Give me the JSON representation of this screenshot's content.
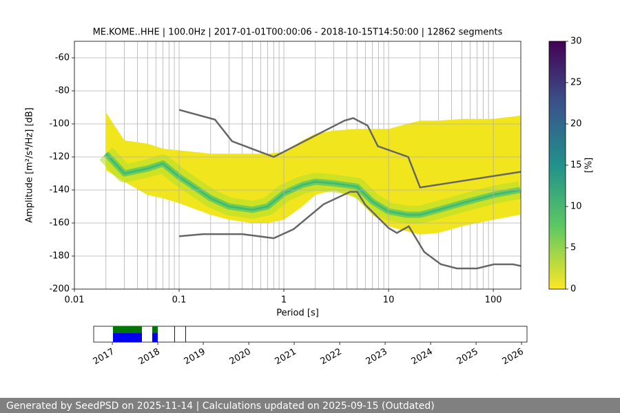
{
  "chart_data": {
    "type": "ppsd",
    "title": "ME.KOME..HHE | 100.0Hz | 2017-01-01T00:00:06 - 2018-10-15T14:50:00 | 12862 segments",
    "x_label": "Period [s]",
    "y_label": "Amplitude [m²/s⁴/Hz] [dB]",
    "log_x": true,
    "xlim": [
      0.01,
      183
    ],
    "ylim": [
      -200,
      -50
    ],
    "xticks": [
      0.01,
      0.1,
      1,
      10,
      100
    ],
    "yticks": [
      -200,
      -180,
      -160,
      -140,
      -120,
      -100,
      -80,
      -60
    ],
    "grid": true,
    "band": {
      "x": [
        0.02,
        0.03,
        0.05,
        0.07,
        0.1,
        0.2,
        0.3,
        0.5,
        0.7,
        1,
        1.5,
        2,
        3,
        5,
        7,
        10,
        15,
        20,
        30,
        50,
        100,
        180
      ],
      "high": [
        -93,
        -110,
        -112,
        -115,
        -116,
        -118,
        -118,
        -118,
        -118,
        -117,
        -110,
        -106,
        -104,
        -103,
        -103,
        -103,
        -100,
        -98,
        -98,
        -97,
        -97,
        -95
      ],
      "low": [
        -128,
        -135,
        -143,
        -145,
        -148,
        -155,
        -158,
        -160,
        -160,
        -158,
        -150,
        -143,
        -140,
        -145,
        -155,
        -162,
        -165,
        -167,
        -166,
        -162,
        -158,
        -155
      ],
      "mode": [
        -118,
        -130,
        -127,
        -124,
        -132,
        -145,
        -150,
        -152,
        -150,
        -142,
        -137,
        -135,
        -136,
        -138,
        -147,
        -153,
        -155,
        -155,
        -152,
        -148,
        -143,
        -140
      ],
      "color": "#f1e51d",
      "mode_color": "#5ec962"
    },
    "series": [
      {
        "color": "#666666",
        "x": [
          0.1,
          0.22,
          0.32,
          0.8,
          3.8,
          4.6,
          6.3,
          7.9,
          15.4,
          20,
          183
        ],
        "values": [
          -91.5,
          -97.4,
          -110.5,
          -120,
          -98,
          -96.5,
          -101,
          -113.5,
          -120,
          -138.5,
          -129
        ]
      },
      {
        "color": "#666666",
        "x": [
          0.1,
          0.17,
          0.4,
          0.8,
          1.24,
          2.4,
          4.3,
          5,
          6,
          10,
          12,
          15.6,
          21.9,
          31.6,
          45,
          70,
          101,
          154,
          183
        ],
        "values": [
          -168,
          -166.7,
          -166.7,
          -169.2,
          -163.7,
          -148.6,
          -141.1,
          -141.1,
          -149,
          -163,
          -166,
          -162,
          -177.5,
          -185,
          -187.5,
          -187.5,
          -185,
          -185,
          -186
        ]
      }
    ],
    "colorbar": {
      "label": "[%]",
      "lim": [
        0,
        30
      ],
      "ticks": [
        0,
        5,
        10,
        15,
        20,
        25,
        30
      ]
    },
    "timeline": {
      "xlim": [
        2016.59,
        2026.12
      ],
      "xticks": [
        2017,
        2018,
        2019,
        2020,
        2021,
        2022,
        2023,
        2024,
        2025,
        2026
      ]
    },
    "footer": "Generated by SeedPSD on 2025-11-14 | Calculations updated on 2025-09-15 (Outdated)"
  }
}
